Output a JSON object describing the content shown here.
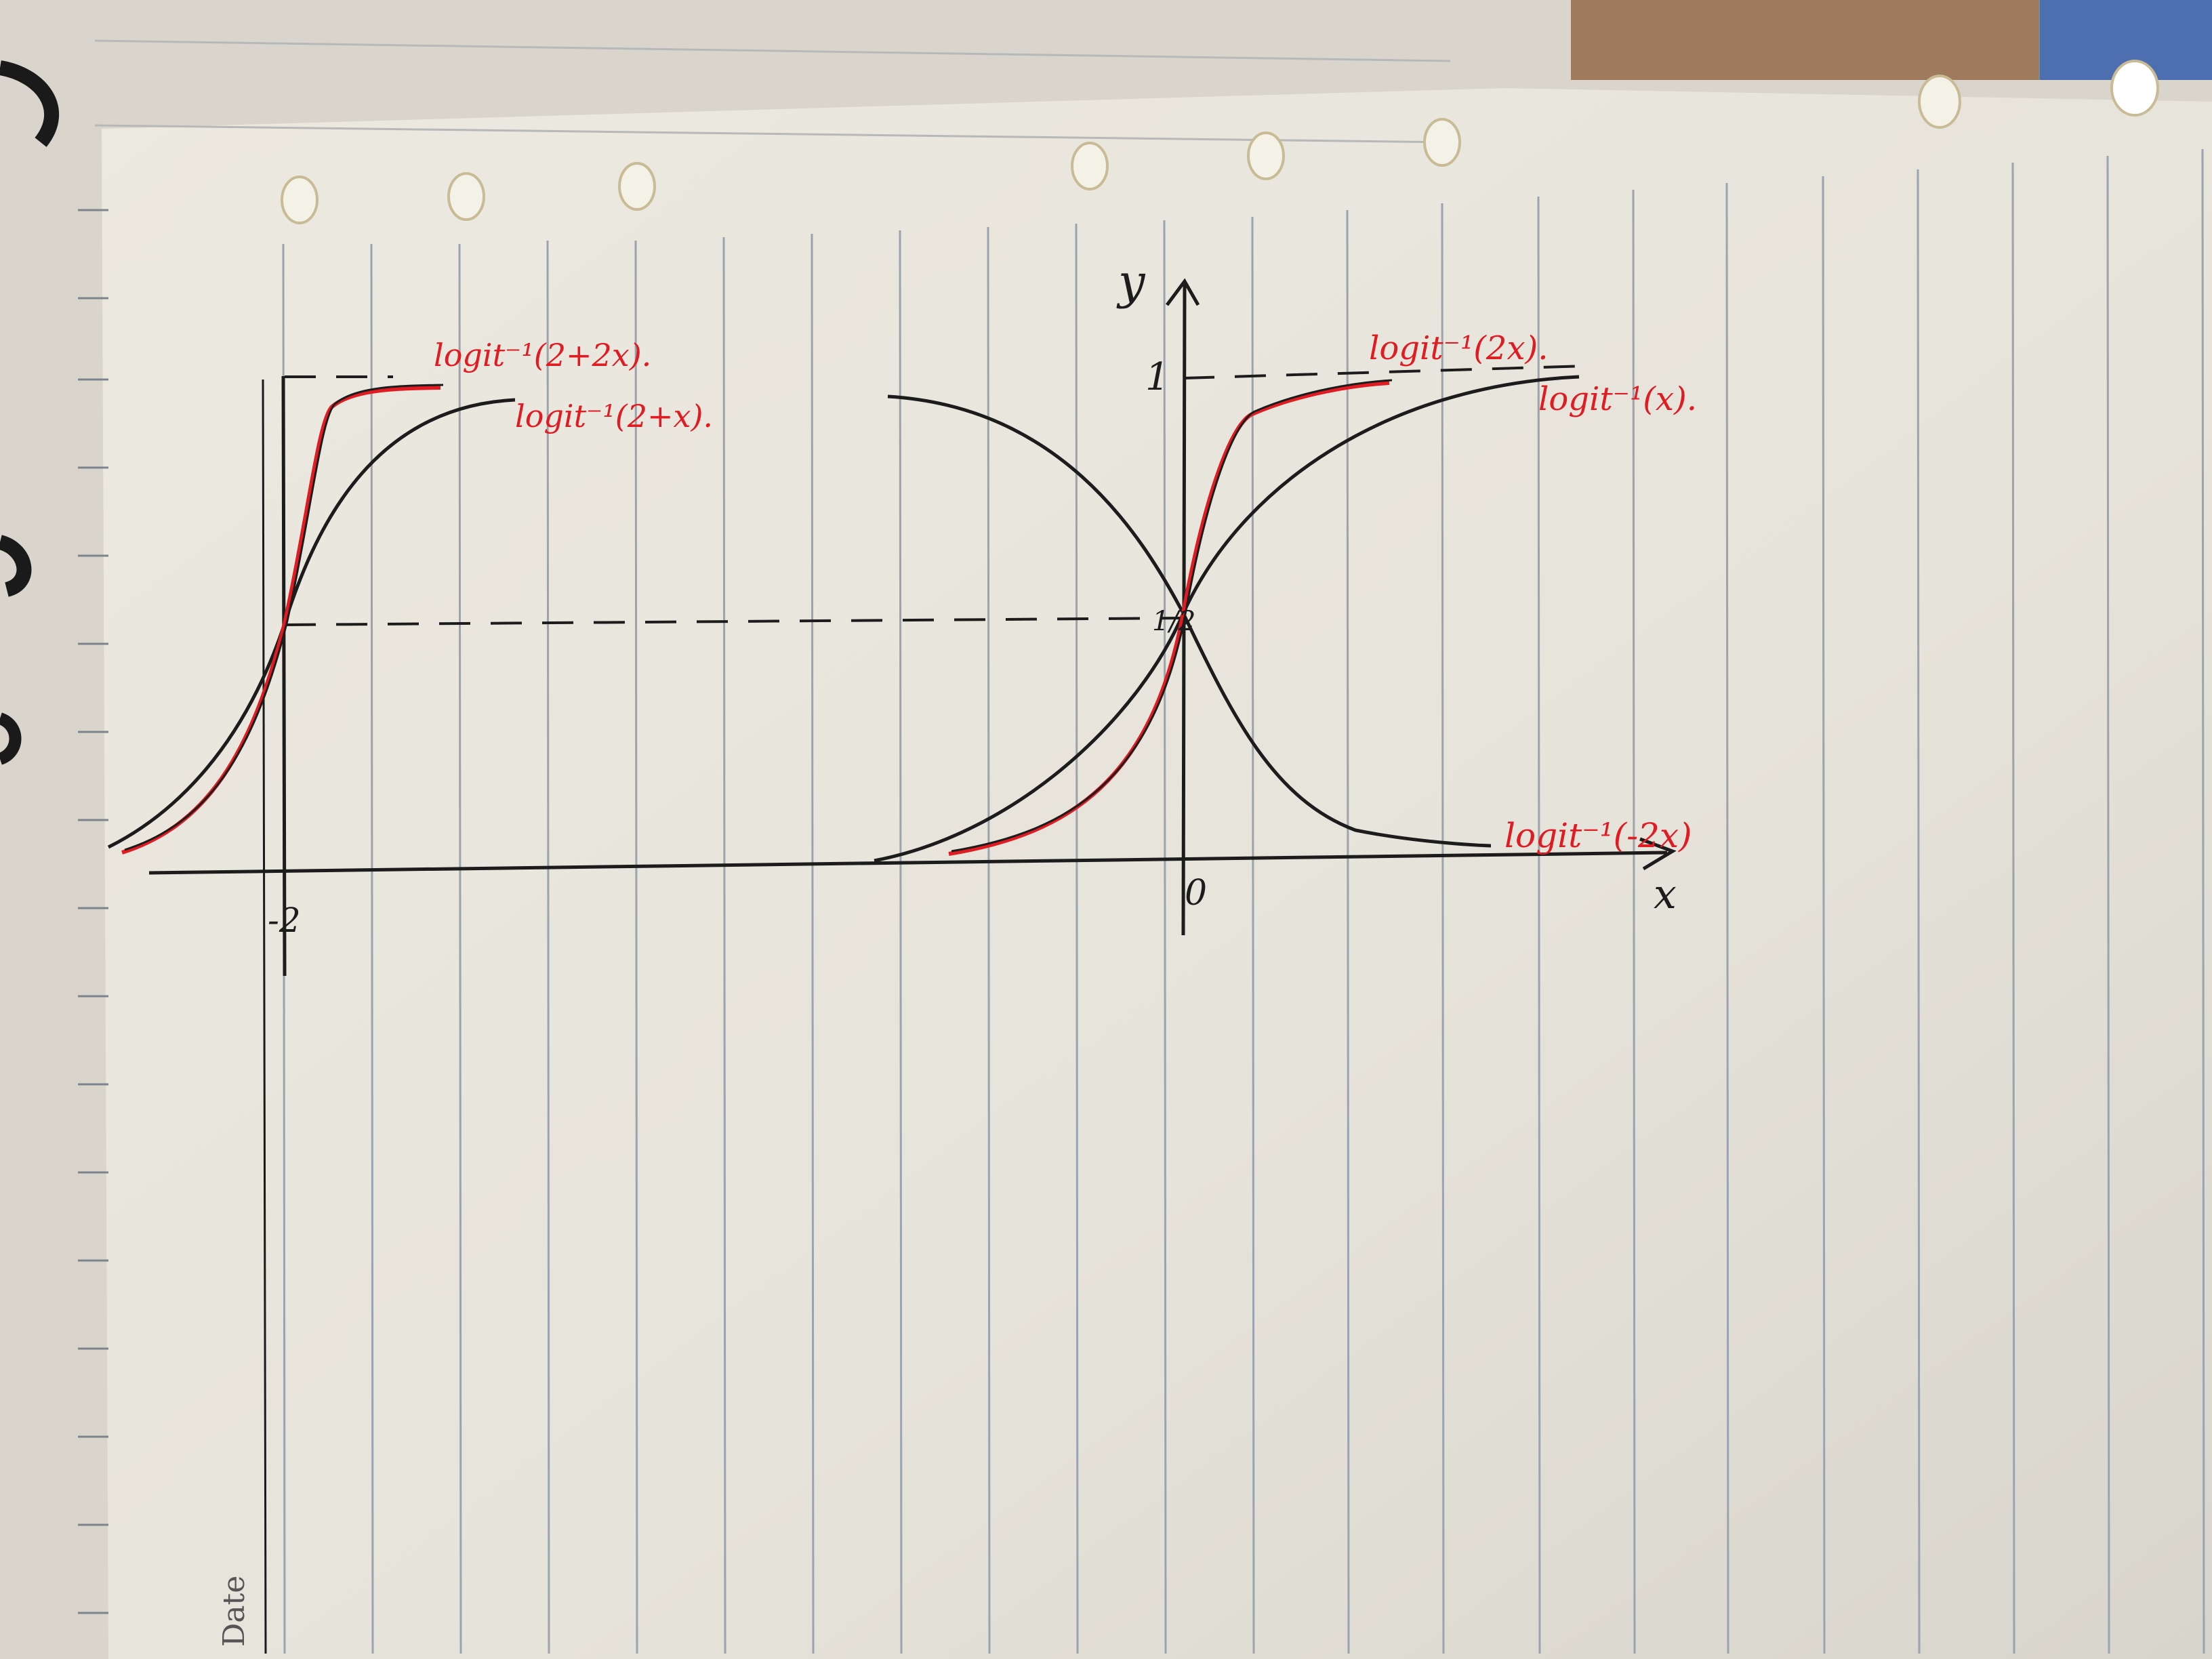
{
  "notebook": {
    "footer_label": "Date"
  },
  "graph": {
    "y_axis_label": "y",
    "x_axis_label": "x",
    "origin_label": "0",
    "y_max_tick_label": "1",
    "y_mid_tick_label": "1/2",
    "x_shift_tick_label": "-2",
    "curve_labels": {
      "shift_steep": "logit⁻¹(2+2x).",
      "shift": "logit⁻¹(2+x).",
      "steep": "logit⁻¹(2x).",
      "base": "logit⁻¹(x).",
      "negative": "logit⁻¹(-2x)"
    }
  },
  "colors": {
    "paper": "#e9e6dd",
    "ink_black": "#1c1c1c",
    "ink_red": "#e01b22",
    "rule_line": "#9aa3ae"
  }
}
